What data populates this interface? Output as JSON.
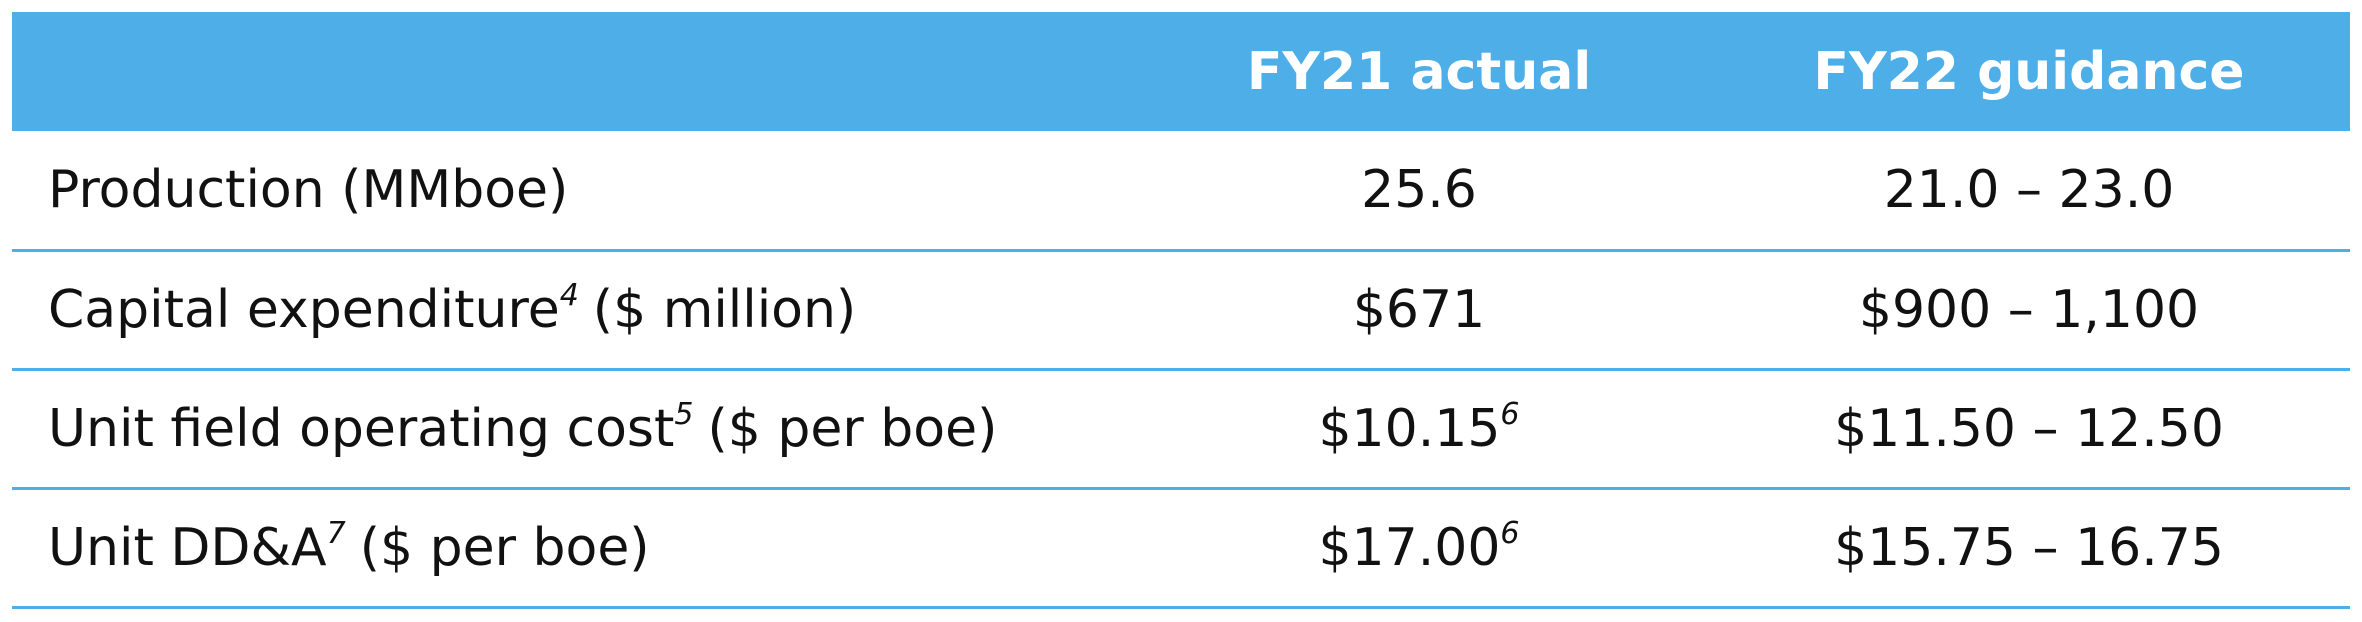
{
  "table": {
    "columns": [
      "FY21 actual",
      "FY22 guidance"
    ],
    "rows": [
      {
        "label": "Production (MMboe)",
        "fy21": "25.6",
        "fy22": "21.0 – 23.0"
      },
      {
        "label": "Capital expenditure",
        "label_note": "4",
        "label_unit": "($ million)",
        "fy21": "$671",
        "fy22": "$900 – 1,100"
      },
      {
        "label": "Unit field operating cost",
        "label_note": "5",
        "label_unit": "($ per boe)",
        "fy21": "$10.15",
        "fy21_note": "6",
        "fy22": "$11.50 – 12.50"
      },
      {
        "label": "Unit DD&A",
        "label_note": "7",
        "label_unit": "($ per boe)",
        "fy21": "$17.00",
        "fy21_note": "6",
        "fy22": "$15.75 – 16.75"
      }
    ]
  }
}
